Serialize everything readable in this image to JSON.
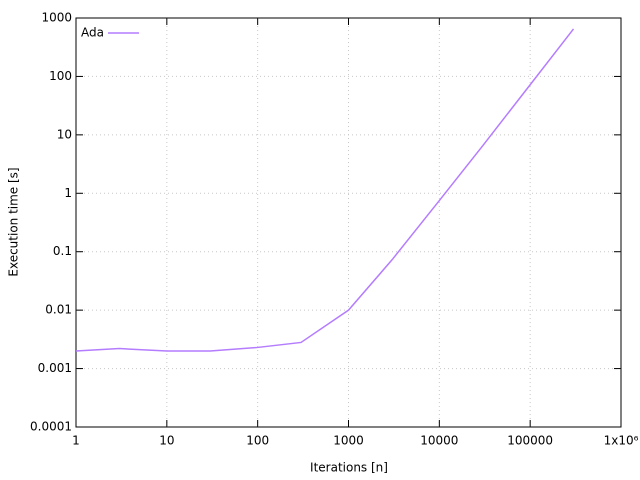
{
  "chart_data": {
    "type": "line",
    "x_label": "Iterations [n]",
    "y_label": "Execution time [s]",
    "xlog": true,
    "ylog": true,
    "grid": true,
    "legend": "top-left",
    "xlim": [
      1,
      1000000
    ],
    "ylim": [
      0.0001,
      1000
    ],
    "xticks": [
      1,
      10,
      100,
      1000,
      10000,
      100000,
      {
        "value": 1000000,
        "label": "1x10⁶"
      }
    ],
    "yticks": [
      0.0001,
      0.001,
      0.01,
      0.1,
      1,
      10,
      100,
      1000
    ],
    "x": [
      1,
      3,
      10,
      30,
      100,
      300,
      1000,
      3000,
      10000,
      30000,
      100000,
      300000
    ],
    "series": [
      {
        "name": "Ada",
        "color": "#b47cff",
        "values": [
          0.002,
          0.0022,
          0.002,
          0.002,
          0.0023,
          0.0028,
          0.01,
          0.072,
          0.75,
          6.5,
          72,
          650
        ]
      }
    ]
  }
}
